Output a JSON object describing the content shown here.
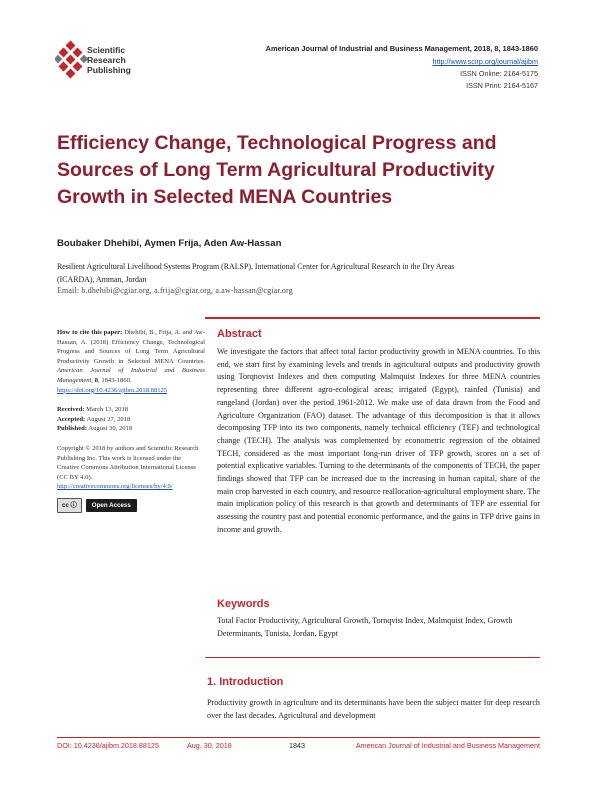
{
  "header": {
    "publisher_name_lines": [
      "Scientific",
      "Research",
      "Publishing"
    ],
    "journal_line": "American Journal of Industrial and Business Management, 2018, 8, 1843-1860",
    "journal_url": "http://www.scirp.org/journal/ajibm",
    "issn_online": "ISSN Online: 2164-5175",
    "issn_print": "ISSN Print: 2164-5167"
  },
  "article": {
    "title": "Efficiency Change, Technological Progress and Sources of Long Term Agricultural Productivity Growth in Selected MENA Countries",
    "authors": "Boubaker Dhehibi, Aymen Frija, Aden Aw-Hassan",
    "affiliation": "Resilient Agricultural Livelihood Systems Program (RALSP), International Center for Agricultural Research in the Dry Areas (ICARDA), Amman, Jordan",
    "email": "Email: b.dhehibi@cgiar.org, a.frija@cgiar.org, a.aw-hassan@cgiar.org"
  },
  "sidebar": {
    "cite_label": "How to cite this paper:",
    "cite_text": "Dhehibi, B., Frija, A. and Aw-Hassan, A. (2018) Efficiency Change, Technological Progress and Sources of Long Term Agricultural Productivity Growth in Selected MENA Countries.",
    "cite_journal": "American Journal of Industrial and Business Management,",
    "cite_volume": "8",
    "cite_pages": ", 1843-1860.",
    "doi_link": "https://doi.org/10.4236/ajibm.2018.88125",
    "received_label": "Received:",
    "received_date": "March 13, 2018",
    "accepted_label": "Accepted:",
    "accepted_date": "August 27, 2018",
    "published_label": "Published:",
    "published_date": "August 30, 2018",
    "copyright_text": "Copyright © 2018 by authors and Scientific Research Publishing Inc. This work is licensed under the Creative Commons Attribution International License (CC BY 4.0).",
    "cc_link": "http://creativecommons.org/licenses/by/4.0/",
    "cc_badge": "cc ⓘ",
    "open_access": "Open Access"
  },
  "abstract": {
    "heading": "Abstract",
    "text": "We investigate the factors that affect total factor productivity growth in MENA countries. To this end, we start first by examining levels and trends in agricultural outputs and productivity growth using Torqnovist Indexes and then computing Malmquist Indexes for three MENA countries representing three different agro-ecological areas; irrigated (Egypt), rainfed (Tunisia) and rangeland (Jordan) over the period 1961-2012. We make use of data drawn from the Food and Agriculture Organization (FAO) dataset. The advantage of this decomposition is that it allows decomposing TFP into its two components, namely technical efficiency (TEF) and technological change (TECH). The analysis was complemented by econometric regression of the obtained TECH, considered as the most important long-run driver of TFP growth, scores on a set of potential explicative variables. Turning to the determinants of the components of TECH, the paper findings showed that TFP can be increased due to the increasing in human capital, share of the main crop harvested in each country, and resource reallocation-agricultural employment share. The main implication policy of this research is that growth and determinants of TFP are essential for assessing the country past and potential economic performance, and the gains in TFP drive gains in income and growth."
  },
  "keywords": {
    "heading": "Keywords",
    "text": "Total Factor Productivity, Agricultural Growth, Tornqvist Index, Malmquist Index, Growth Determinants, Tunisia, Jordan, Egypt"
  },
  "introduction": {
    "heading": "1. Introduction",
    "text": "Productivity growth in agriculture and its determinants have been the subject matter for deep research over the last decades. Agricultural and development"
  },
  "footer": {
    "doi": "DOI: 10.4236/ajibm.2018.88125",
    "date": "Aug. 30, 2018",
    "page": "1843",
    "journal": "American Journal of Industrial and Business Management"
  },
  "colors": {
    "accent_red": "#c0272d",
    "title_maroon": "#8b2130",
    "link_blue": "#1a4fb4"
  }
}
